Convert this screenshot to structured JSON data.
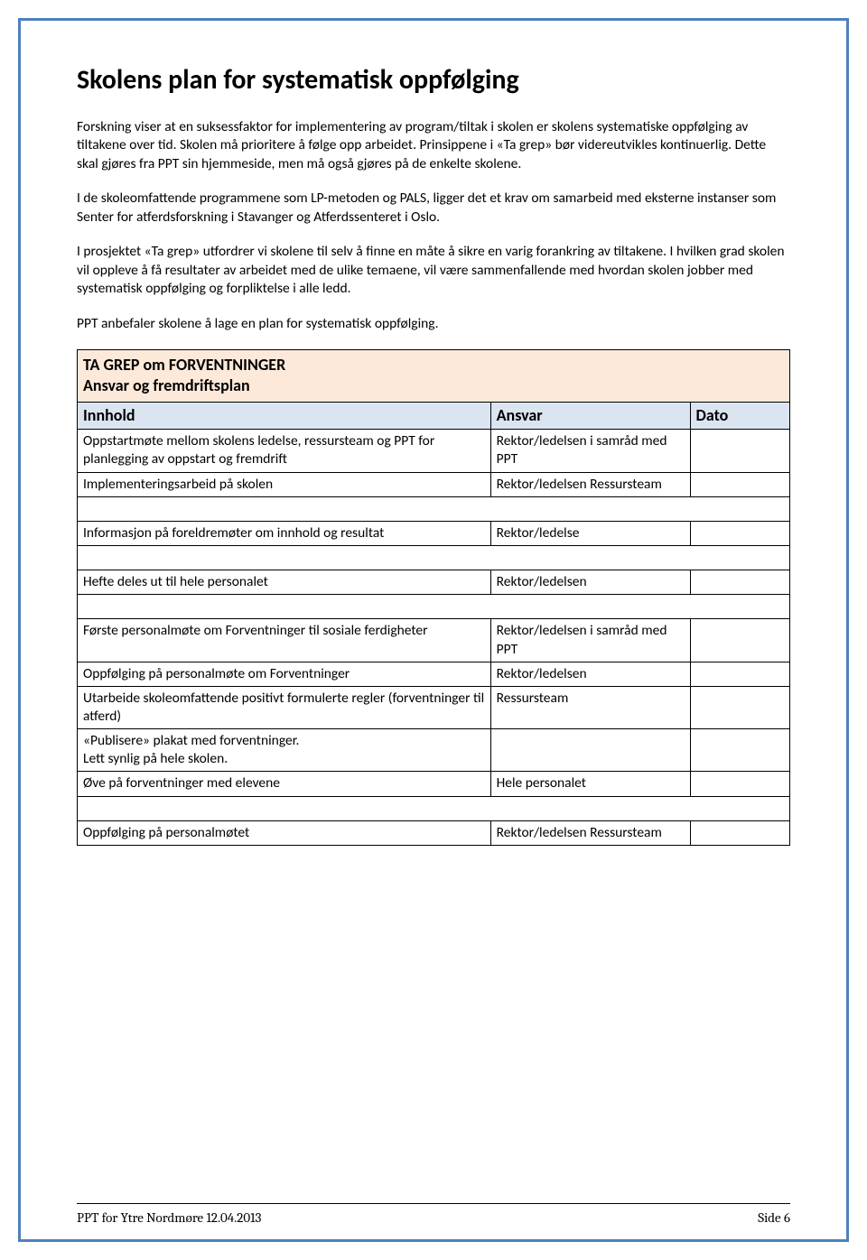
{
  "heading": "Skolens plan for systematisk oppfølging",
  "paragraphs": [
    "Forskning viser at en suksessfaktor for implementering av program/tiltak i skolen er skolens systematiske oppfølging av tiltakene over tid. Skolen må prioritere å følge opp arbeidet. Prinsippene i «Ta grep» bør videreutvikles kontinuerlig. Dette skal gjøres fra PPT sin hjemmeside, men må også gjøres på de enkelte skolene.",
    "I de skoleomfattende programmene som LP-metoden og PALS, ligger det et krav om samarbeid med eksterne instanser som Senter for atferdsforskning i Stavanger og Atferdssenteret i Oslo.",
    "I prosjektet «Ta grep» utfordrer vi skolene til selv å finne en måte å sikre en varig forankring av tiltakene. I hvilken grad skolen vil oppleve å få resultater av arbeidet med de ulike temaene, vil være sammenfallende med hvordan skolen jobber med systematisk oppfølging og forpliktelse i alle ledd.",
    "PPT anbefaler skolene å lage en plan for systematisk oppfølging."
  ],
  "table": {
    "title_line1": "TA GREP om FORVENTNINGER",
    "title_line2": "Ansvar og fremdriftsplan",
    "headers": {
      "c1": "Innhold",
      "c2": "Ansvar",
      "c3": "Dato"
    },
    "col_widths": [
      "58%",
      "28%",
      "14%"
    ],
    "title_bg": "#fde9d9",
    "header_bg": "#dbe5f1",
    "rows": [
      {
        "c1": "Oppstartmøte mellom skolens ledelse, ressursteam og PPT for planlegging av oppstart og fremdrift",
        "c2": "Rektor/ledelsen i samråd med PPT",
        "c3": ""
      },
      {
        "c1": "Implementeringsarbeid på skolen",
        "c2": "Rektor/ledelsen Ressursteam",
        "c3": ""
      },
      {
        "spacer": true
      },
      {
        "c1": "Informasjon på foreldremøter om innhold og resultat",
        "c2": "Rektor/ledelse",
        "c3": ""
      },
      {
        "spacer": true
      },
      {
        "c1": "Hefte deles ut til hele personalet",
        "c2": "Rektor/ledelsen",
        "c3": ""
      },
      {
        "spacer": true
      },
      {
        "c1": "Første personalmøte om Forventninger til sosiale ferdigheter",
        "c2": "Rektor/ledelsen i samråd med PPT",
        "c3": ""
      },
      {
        "c1": "Oppfølging på personalmøte om Forventninger",
        "c2": "Rektor/ledelsen",
        "c3": ""
      },
      {
        "c1": "Utarbeide skoleomfattende positivt formulerte regler (forventninger til atferd)",
        "c2": "Ressursteam",
        "c3": ""
      },
      {
        "c1": "«Publisere» plakat med forventninger.\nLett synlig på hele skolen.",
        "c2": "",
        "c3": ""
      },
      {
        "c1": "Øve på forventninger med elevene",
        "c2": "Hele personalet",
        "c3": ""
      },
      {
        "spacer": true
      },
      {
        "c1": "Oppfølging på personalmøtet",
        "c2": "Rektor/ledelsen Ressursteam",
        "c3": ""
      }
    ]
  },
  "footer": {
    "left": "PPT for Ytre Nordmøre  12.04.2013",
    "right": "Side 6"
  },
  "colors": {
    "border": "#4f81bd",
    "title_bg": "#fde9d9",
    "header_bg": "#dbe5f1",
    "text": "#000000"
  }
}
